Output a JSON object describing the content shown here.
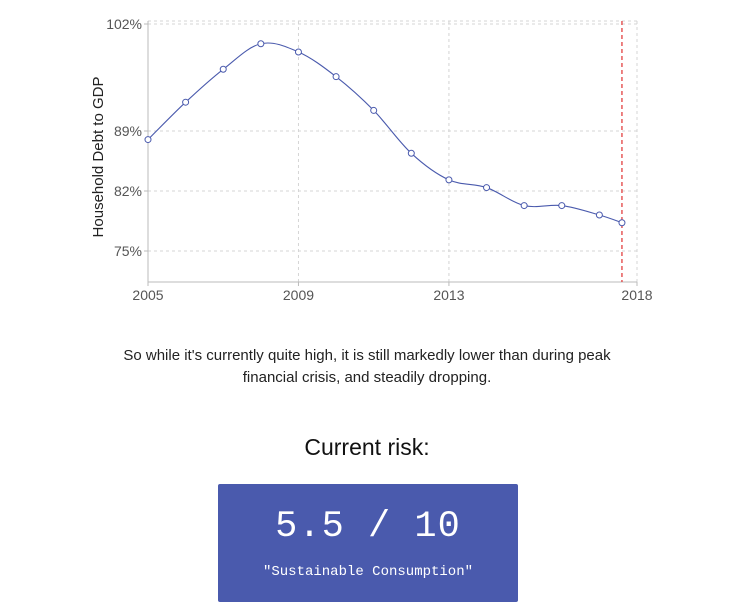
{
  "chart_data": {
    "type": "line",
    "ylabel": "Household Debt to GDP",
    "xlim": [
      2005,
      2018
    ],
    "x_ticks": [
      {
        "value": 2005,
        "label": "2005"
      },
      {
        "value": 2009,
        "label": "2009"
      },
      {
        "value": 2013,
        "label": "2013"
      },
      {
        "value": 2018,
        "label": "2018"
      }
    ],
    "y_ticks": [
      {
        "value": 102,
        "label": "102%"
      },
      {
        "value": 89,
        "label": "89%"
      },
      {
        "value": 82,
        "label": "82%"
      },
      {
        "value": 75,
        "label": "75%"
      }
    ],
    "grid": true,
    "marker_line_x": 2017.6,
    "marker_line_color": "#e03030",
    "line_color": "#4a5aad",
    "x": [
      2005,
      2006,
      2007,
      2008,
      2009,
      2010,
      2011,
      2012,
      2013,
      2014,
      2015,
      2016,
      2017,
      2017.6
    ],
    "values": [
      88,
      92.5,
      96.5,
      99.6,
      98.6,
      95.6,
      91.5,
      86.4,
      83.3,
      82.4,
      80.3,
      80.3,
      79.2,
      78.3
    ]
  },
  "caption": {
    "line1": "So while it's currently quite high, it is still markedly lower than during peak",
    "line2": "financial crisis, and steadily dropping."
  },
  "risk": {
    "title": "Current risk:",
    "score": "5.5 / 10",
    "label": "\"Sustainable Consumption\"",
    "color": "#4a5aad"
  }
}
